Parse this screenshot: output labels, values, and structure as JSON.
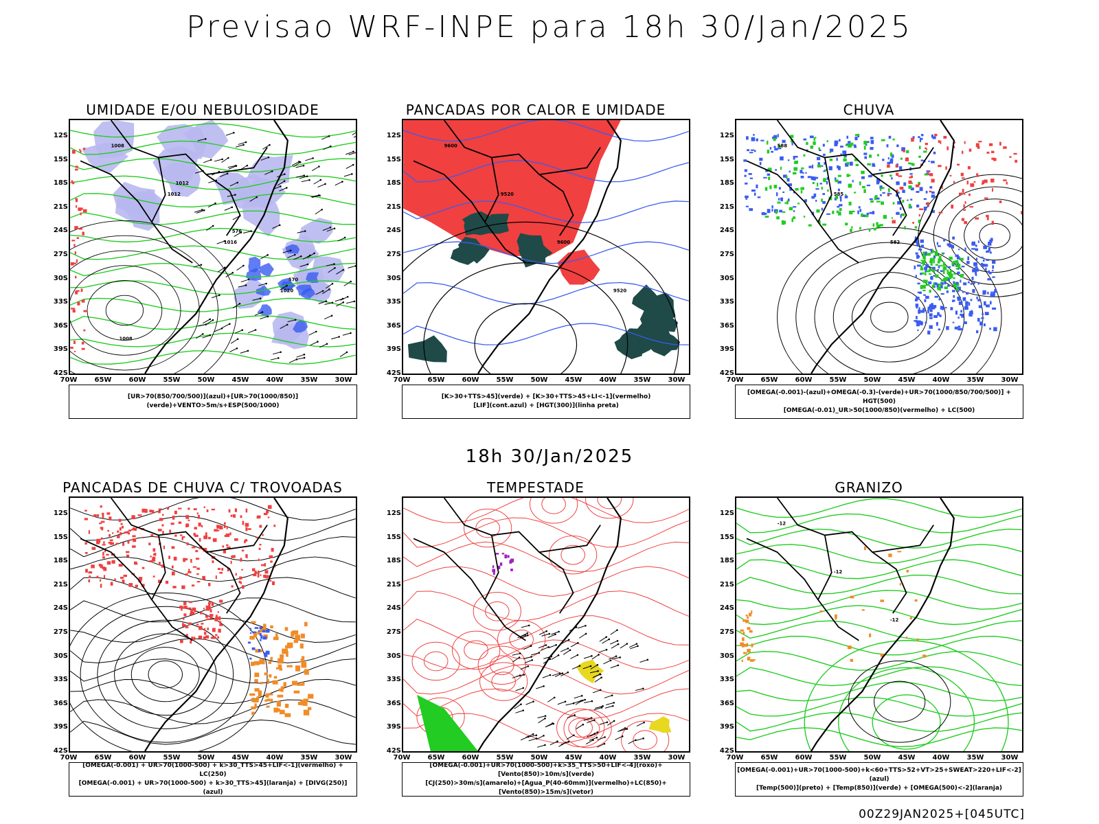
{
  "header": {
    "title": "Previsao WRF-INPE  para 18h 30/Jan/2025"
  },
  "mid_title": "18h 30/Jan/2025",
  "footer": "00Z29JAN2025+[045UTC]",
  "axes": {
    "lat_labels": [
      "12S",
      "15S",
      "18S",
      "21S",
      "24S",
      "27S",
      "30S",
      "33S",
      "36S",
      "39S",
      "42S"
    ],
    "lon_labels": [
      "70W",
      "65W",
      "60W",
      "55W",
      "50W",
      "45W",
      "40W",
      "35W",
      "30W"
    ]
  },
  "colors": {
    "blue": "#3a5cf0",
    "green": "#22cc22",
    "red": "#f04040",
    "lavender": "#b8b8f0",
    "darkgreen": "#1f4a48",
    "orange": "#f08c28",
    "yellow": "#e8d820",
    "purple": "#a020c0"
  },
  "panels": [
    {
      "id": "umidade",
      "title": "UMIDADE E/OU NEBULOSIDADE",
      "legend": [
        "[UR>70(850/700/500)](azul)+[UR>70(1000/850)](verde)+VENTO>5m/s+ESP(500/1000)"
      ],
      "contour_labels": [
        "1008",
        "1012",
        "1016",
        "1020",
        "1008",
        "1012",
        "576",
        "570"
      ]
    },
    {
      "id": "pancadas_calor",
      "title": "PANCADAS POR CALOR E UMIDADE",
      "legend": [
        "[K>30+TTS>45](verde) + [K>30+TTS>45+LI<-1](vermelho)",
        "[LIF](cont.azul) + [HGT(300)](linha preta)"
      ],
      "contour_labels": [
        "9600",
        "9520",
        "9600",
        "9520"
      ]
    },
    {
      "id": "chuva",
      "title": "CHUVA",
      "legend": [
        "[OMEGA(-0.001)-(azul)+OMEGA(-0.3)-(verde)+UR>70(1000/850/700/500)] + HGT(500)",
        "[OMEGA(-0.01)_UR>50(1000/850)(vermelho) + LC(500)"
      ],
      "contour_labels": [
        "588",
        "585",
        "582"
      ]
    },
    {
      "id": "trovoadas",
      "title": "PANCADAS DE CHUVA C/ TROVOADAS",
      "legend": [
        "[OMEGA(-0.001) + UR>70(1000-500) + k>30_TTS>45+LIF<-1](vermelho) + LC(250)",
        "[OMEGA(-0.001) + UR>70(1000-500) + k>30_TTS>45](laranja) + [DIVG(250)](azul)"
      ],
      "contour_labels": []
    },
    {
      "id": "tempestade",
      "title": "TEMPESTADE",
      "legend": [
        "[OMEGA(-0.001)+UR>70(1000-500)+k>35_TTS>50+LIF<-4](roxo)+[Vento(850)>10m/s](verde)",
        "[CJ(250)>30m/s](amarelo)+[Agua_P(40-60mm)](vermelho)+LC(850)+[Vento(850)>15m/s](vetor)"
      ],
      "contour_labels": []
    },
    {
      "id": "granizo",
      "title": "GRANIZO",
      "legend": [
        "[OMEGA(-0.001)+UR>70(1000-500)+k<60+TTS>52+VT>25+SWEAT>220+LIF<-2](azul)",
        "[Temp(500)](preto) + [Temp(850)](verde) + [OMEGA(500)<-2](laranja)"
      ],
      "contour_labels": [
        "-12",
        "-12",
        "-12"
      ]
    }
  ]
}
